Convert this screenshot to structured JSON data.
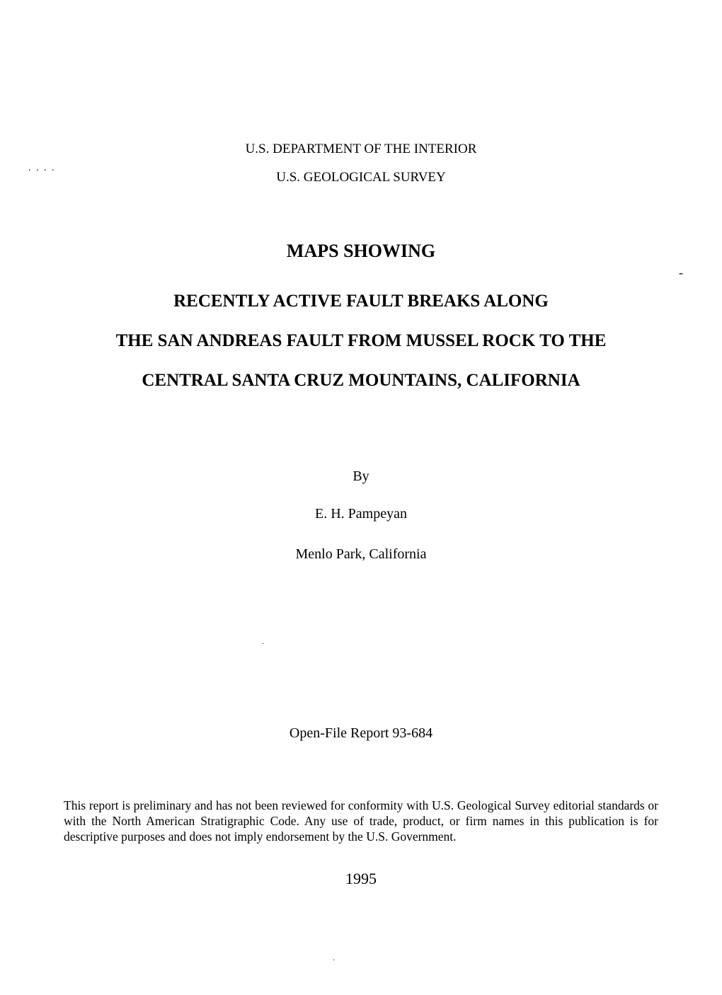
{
  "marks": {
    "topDots": ". . . .",
    "dash": "-",
    "strayDot": "·",
    "bottomDot": "·"
  },
  "header": {
    "department": "U.S. DEPARTMENT OF THE INTERIOR",
    "survey": "U.S. GEOLOGICAL SURVEY"
  },
  "title": {
    "line1": "MAPS SHOWING",
    "line2": "RECENTLY ACTIVE FAULT BREAKS ALONG",
    "line3": "THE SAN ANDREAS FAULT FROM MUSSEL ROCK TO THE",
    "line4": "CENTRAL SANTA CRUZ MOUNTAINS, CALIFORNIA"
  },
  "author": {
    "by": "By",
    "name": "E. H. Pampeyan",
    "location": "Menlo Park, California"
  },
  "report": {
    "id": "Open-File Report 93-684"
  },
  "disclaimer": "This report is preliminary and has not been reviewed for conformity with U.S. Geological Survey editorial standards or with the North American Stratigraphic Code. Any use of trade, product, or firm names in this publication is for descriptive purposes and does not imply endorsement by the U.S. Government.",
  "year": "1995"
}
